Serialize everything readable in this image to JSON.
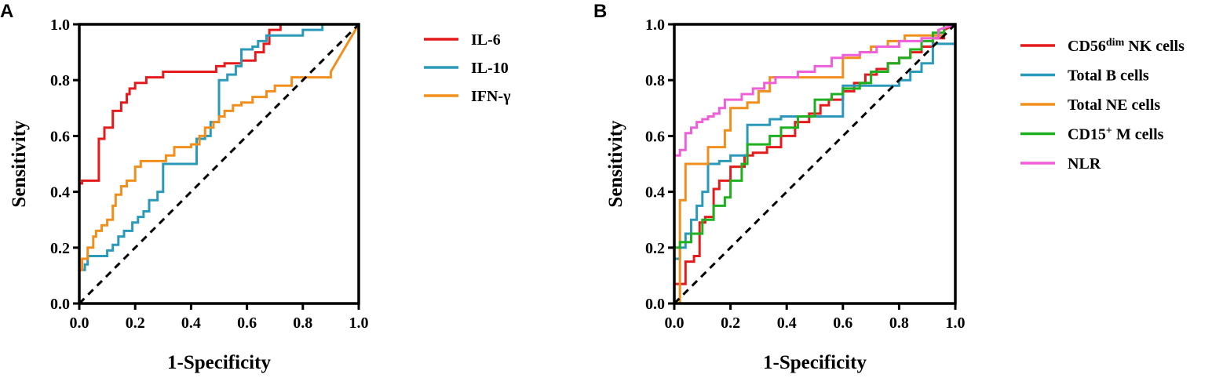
{
  "chart_data": [
    {
      "type": "line",
      "panel_label": "A",
      "xlabel": "1-Specificity",
      "ylabel": "Sensitivity",
      "xlim": [
        0,
        1
      ],
      "ylim": [
        0,
        1
      ],
      "xticks": [
        "0.0",
        "0.2",
        "0.4",
        "0.6",
        "0.8",
        "1.0"
      ],
      "yticks": [
        "0.0",
        "0.2",
        "0.4",
        "0.6",
        "0.8",
        "1.0"
      ],
      "reference_line": {
        "x": [
          0,
          1
        ],
        "y": [
          0,
          1
        ],
        "style": "dashed"
      },
      "legend_position": "right",
      "series": [
        {
          "name": "IL-6",
          "color": "#e41a1c",
          "x": [
            0,
            0,
            0.01,
            0.01,
            0.07,
            0.07,
            0.09,
            0.09,
            0.12,
            0.12,
            0.15,
            0.15,
            0.17,
            0.17,
            0.18,
            0.18,
            0.2,
            0.2,
            0.24,
            0.24,
            0.3,
            0.3,
            0.49,
            0.49,
            0.52,
            0.52,
            0.58,
            0.58,
            0.63,
            0.63,
            0.66,
            0.66,
            0.68,
            0.68,
            0.72,
            0.72,
            0.76
          ],
          "y": [
            0.4,
            0.43,
            0.43,
            0.44,
            0.44,
            0.59,
            0.59,
            0.63,
            0.63,
            0.69,
            0.69,
            0.72,
            0.72,
            0.75,
            0.75,
            0.77,
            0.77,
            0.79,
            0.79,
            0.81,
            0.81,
            0.83,
            0.83,
            0.85,
            0.85,
            0.86,
            0.86,
            0.87,
            0.87,
            0.9,
            0.9,
            0.93,
            0.93,
            0.98,
            0.98,
            1.0,
            1.0
          ]
        },
        {
          "name": "IL-10",
          "color": "#2b9aba",
          "x": [
            0,
            0.02,
            0.02,
            0.03,
            0.03,
            0.05,
            0.05,
            0.1,
            0.1,
            0.12,
            0.12,
            0.14,
            0.14,
            0.16,
            0.16,
            0.19,
            0.19,
            0.21,
            0.21,
            0.23,
            0.23,
            0.25,
            0.25,
            0.28,
            0.28,
            0.3,
            0.3,
            0.42,
            0.42,
            0.45,
            0.45,
            0.47,
            0.47,
            0.5,
            0.5,
            0.53,
            0.53,
            0.56,
            0.56,
            0.58,
            0.58,
            0.62,
            0.62,
            0.64,
            0.64,
            0.67,
            0.67,
            0.7,
            0.7,
            0.8,
            0.8,
            0.84,
            0.84,
            0.87,
            0.87
          ],
          "y": [
            0.12,
            0.12,
            0.14,
            0.14,
            0.17,
            0.17,
            0.17,
            0.17,
            0.19,
            0.19,
            0.21,
            0.21,
            0.24,
            0.24,
            0.26,
            0.26,
            0.29,
            0.29,
            0.31,
            0.31,
            0.33,
            0.33,
            0.37,
            0.37,
            0.4,
            0.4,
            0.5,
            0.5,
            0.59,
            0.59,
            0.6,
            0.6,
            0.65,
            0.65,
            0.8,
            0.8,
            0.82,
            0.82,
            0.85,
            0.85,
            0.91,
            0.91,
            0.92,
            0.92,
            0.94,
            0.94,
            0.96,
            0.96,
            0.96,
            0.96,
            0.98,
            0.98,
            0.98,
            0.98,
            1.0
          ]
        },
        {
          "name": "IFN-γ",
          "color": "#f28e1c",
          "x": [
            0,
            0,
            0.01,
            0.01,
            0.03,
            0.03,
            0.05,
            0.05,
            0.06,
            0.06,
            0.08,
            0.08,
            0.1,
            0.1,
            0.12,
            0.12,
            0.13,
            0.13,
            0.15,
            0.15,
            0.17,
            0.17,
            0.2,
            0.2,
            0.22,
            0.22,
            0.31,
            0.31,
            0.34,
            0.34,
            0.4,
            0.4,
            0.43,
            0.43,
            0.45,
            0.45,
            0.48,
            0.48,
            0.5,
            0.5,
            0.52,
            0.52,
            0.55,
            0.55,
            0.58,
            0.58,
            0.62,
            0.62,
            0.67,
            0.67,
            0.7,
            0.7,
            0.76,
            0.76,
            0.86,
            0.86,
            0.9,
            0.9,
            1.0
          ],
          "y": [
            0,
            0.12,
            0.12,
            0.16,
            0.16,
            0.2,
            0.2,
            0.24,
            0.24,
            0.26,
            0.26,
            0.28,
            0.28,
            0.3,
            0.3,
            0.35,
            0.35,
            0.39,
            0.39,
            0.42,
            0.42,
            0.44,
            0.44,
            0.49,
            0.49,
            0.51,
            0.51,
            0.53,
            0.53,
            0.56,
            0.56,
            0.57,
            0.57,
            0.6,
            0.6,
            0.63,
            0.63,
            0.65,
            0.65,
            0.67,
            0.67,
            0.69,
            0.69,
            0.71,
            0.71,
            0.72,
            0.72,
            0.74,
            0.74,
            0.76,
            0.76,
            0.78,
            0.78,
            0.81,
            0.81,
            0.81,
            0.81,
            0.83,
            1.0
          ]
        }
      ]
    },
    {
      "type": "line",
      "panel_label": "B",
      "xlabel": "1-Specificity",
      "ylabel": "Sensitivity",
      "xlim": [
        0,
        1
      ],
      "ylim": [
        0,
        1
      ],
      "xticks": [
        "0.0",
        "0.2",
        "0.4",
        "0.6",
        "0.8",
        "1.0"
      ],
      "yticks": [
        "0.0",
        "0.2",
        "0.4",
        "0.6",
        "0.8",
        "1.0"
      ],
      "reference_line": {
        "x": [
          0,
          1
        ],
        "y": [
          0,
          1
        ],
        "style": "dashed"
      },
      "legend_position": "right",
      "series": [
        {
          "name": "CD56dim NK cells",
          "legend_main": "CD56",
          "legend_sup": "dim",
          "legend_tail": " NK cells",
          "color": "#e41a1c",
          "x": [
            0,
            0,
            0.04,
            0.04,
            0.07,
            0.07,
            0.09,
            0.09,
            0.11,
            0.11,
            0.14,
            0.14,
            0.16,
            0.16,
            0.2,
            0.2,
            0.25,
            0.25,
            0.28,
            0.28,
            0.33,
            0.33,
            0.38,
            0.38,
            0.43,
            0.43,
            0.48,
            0.48,
            0.52,
            0.52,
            0.55,
            0.55,
            0.6,
            0.6,
            0.64,
            0.64,
            0.68,
            0.68,
            0.72,
            0.72,
            0.76,
            0.76,
            0.8,
            0.8,
            0.84,
            0.84,
            0.88,
            0.88,
            0.92,
            0.92,
            0.96,
            0.96,
            1.0
          ],
          "y": [
            0,
            0.07,
            0.07,
            0.15,
            0.15,
            0.17,
            0.17,
            0.29,
            0.29,
            0.31,
            0.31,
            0.41,
            0.41,
            0.44,
            0.44,
            0.49,
            0.49,
            0.53,
            0.53,
            0.54,
            0.54,
            0.56,
            0.56,
            0.6,
            0.6,
            0.65,
            0.65,
            0.68,
            0.68,
            0.71,
            0.71,
            0.73,
            0.73,
            0.76,
            0.76,
            0.79,
            0.79,
            0.82,
            0.82,
            0.84,
            0.84,
            0.86,
            0.86,
            0.88,
            0.88,
            0.9,
            0.9,
            0.92,
            0.92,
            0.95,
            0.95,
            0.98,
            1.0
          ]
        },
        {
          "name": "Total B cells",
          "color": "#2b9aba",
          "x": [
            0,
            0.02,
            0.02,
            0.04,
            0.04,
            0.06,
            0.06,
            0.08,
            0.08,
            0.1,
            0.1,
            0.12,
            0.12,
            0.16,
            0.16,
            0.2,
            0.2,
            0.26,
            0.26,
            0.3,
            0.3,
            0.34,
            0.34,
            0.38,
            0.38,
            0.44,
            0.44,
            0.6,
            0.6,
            0.7,
            0.7,
            0.8,
            0.8,
            0.84,
            0.84,
            0.88,
            0.88,
            0.92,
            0.92,
            1.0
          ],
          "y": [
            0.16,
            0.16,
            0.2,
            0.2,
            0.25,
            0.25,
            0.3,
            0.3,
            0.35,
            0.35,
            0.4,
            0.4,
            0.5,
            0.5,
            0.51,
            0.51,
            0.53,
            0.53,
            0.64,
            0.64,
            0.64,
            0.64,
            0.66,
            0.66,
            0.67,
            0.67,
            0.67,
            0.67,
            0.78,
            0.78,
            0.78,
            0.78,
            0.8,
            0.8,
            0.83,
            0.83,
            0.86,
            0.86,
            0.93,
            0.93
          ]
        },
        {
          "name": "Total NE cells",
          "color": "#f28e1c",
          "x": [
            0,
            0.02,
            0.02,
            0.04,
            0.04,
            0.12,
            0.12,
            0.18,
            0.18,
            0.2,
            0.2,
            0.26,
            0.26,
            0.3,
            0.3,
            0.34,
            0.34,
            0.38,
            0.38,
            0.6,
            0.6,
            0.66,
            0.66,
            0.7,
            0.7,
            0.76,
            0.76,
            0.82,
            0.82,
            0.96,
            0.96,
            1.0
          ],
          "y": [
            0.0,
            0.0,
            0.37,
            0.37,
            0.5,
            0.5,
            0.56,
            0.56,
            0.62,
            0.62,
            0.7,
            0.7,
            0.72,
            0.72,
            0.76,
            0.76,
            0.81,
            0.81,
            0.81,
            0.81,
            0.88,
            0.88,
            0.9,
            0.9,
            0.92,
            0.92,
            0.94,
            0.94,
            0.96,
            0.96,
            1.0,
            1.0
          ]
        },
        {
          "name": "CD15+ M cells",
          "legend_main": "CD15",
          "legend_sup": "+",
          "legend_tail": " M cells",
          "color": "#1fb01f",
          "x": [
            0,
            0.02,
            0.02,
            0.06,
            0.06,
            0.1,
            0.1,
            0.14,
            0.14,
            0.18,
            0.18,
            0.2,
            0.2,
            0.24,
            0.24,
            0.26,
            0.26,
            0.3,
            0.3,
            0.34,
            0.34,
            0.38,
            0.38,
            0.44,
            0.44,
            0.5,
            0.5,
            0.56,
            0.56,
            0.6,
            0.6,
            0.66,
            0.66,
            0.7,
            0.7,
            0.76,
            0.76,
            0.8,
            0.8,
            0.84,
            0.84,
            0.88,
            0.88,
            0.92,
            0.92,
            0.96,
            0.96,
            1.0
          ],
          "y": [
            0.2,
            0.2,
            0.22,
            0.22,
            0.25,
            0.25,
            0.3,
            0.3,
            0.35,
            0.35,
            0.38,
            0.38,
            0.44,
            0.44,
            0.5,
            0.5,
            0.57,
            0.57,
            0.57,
            0.57,
            0.6,
            0.6,
            0.63,
            0.63,
            0.67,
            0.67,
            0.73,
            0.73,
            0.75,
            0.75,
            0.77,
            0.77,
            0.79,
            0.79,
            0.83,
            0.83,
            0.86,
            0.86,
            0.88,
            0.88,
            0.91,
            0.91,
            0.94,
            0.94,
            0.97,
            0.97,
            1.0,
            1.0
          ]
        },
        {
          "name": "NLR",
          "color": "#ee5fd9",
          "x": [
            0,
            0,
            0.02,
            0.02,
            0.04,
            0.04,
            0.06,
            0.06,
            0.08,
            0.08,
            0.1,
            0.1,
            0.12,
            0.12,
            0.14,
            0.14,
            0.16,
            0.16,
            0.18,
            0.18,
            0.24,
            0.24,
            0.28,
            0.28,
            0.32,
            0.32,
            0.36,
            0.36,
            0.44,
            0.44,
            0.5,
            0.5,
            0.56,
            0.56,
            0.6,
            0.6,
            0.66,
            0.66,
            0.72,
            0.72,
            0.8,
            0.8,
            0.88,
            0.88,
            0.94,
            0.94,
            1.0
          ],
          "y": [
            0,
            0.53,
            0.53,
            0.55,
            0.55,
            0.61,
            0.61,
            0.63,
            0.63,
            0.65,
            0.65,
            0.66,
            0.66,
            0.67,
            0.67,
            0.68,
            0.68,
            0.7,
            0.7,
            0.73,
            0.73,
            0.75,
            0.75,
            0.77,
            0.77,
            0.79,
            0.79,
            0.81,
            0.81,
            0.83,
            0.83,
            0.85,
            0.85,
            0.88,
            0.88,
            0.89,
            0.89,
            0.9,
            0.9,
            0.92,
            0.92,
            0.94,
            0.94,
            0.95,
            0.95,
            0.98,
            1.0
          ]
        }
      ]
    }
  ]
}
